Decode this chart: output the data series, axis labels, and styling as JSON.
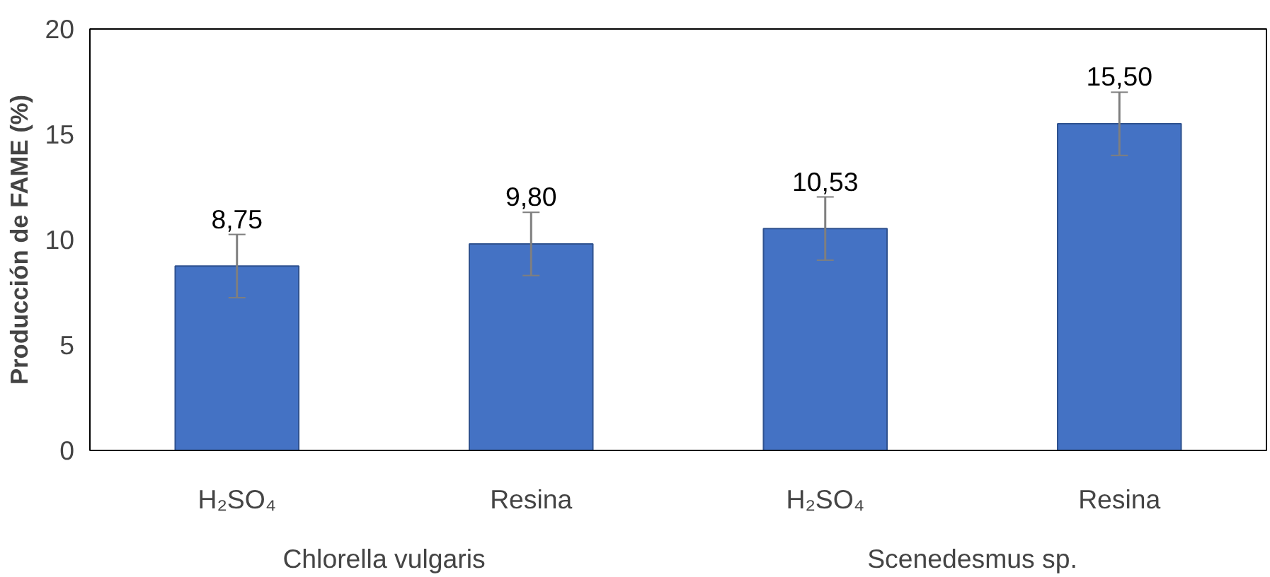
{
  "chart_data": {
    "type": "bar",
    "ylabel": "Producción de FAME (%)",
    "categories": [
      "H₂SO₄",
      "Resina",
      "H₂SO₄",
      "Resina"
    ],
    "values": [
      8.75,
      9.8,
      10.53,
      15.5
    ],
    "value_labels": [
      "8,75",
      "9,80",
      "10,53",
      "15,50"
    ],
    "errors": [
      1.5,
      1.5,
      1.5,
      1.5
    ],
    "color": "#4472c4",
    "ylim": [
      0,
      20
    ],
    "yticks": [
      0,
      5,
      10,
      15,
      20
    ],
    "annotations": [
      "Chlorella vulgaris",
      "Scenedesmus sp."
    ],
    "grid": false
  }
}
